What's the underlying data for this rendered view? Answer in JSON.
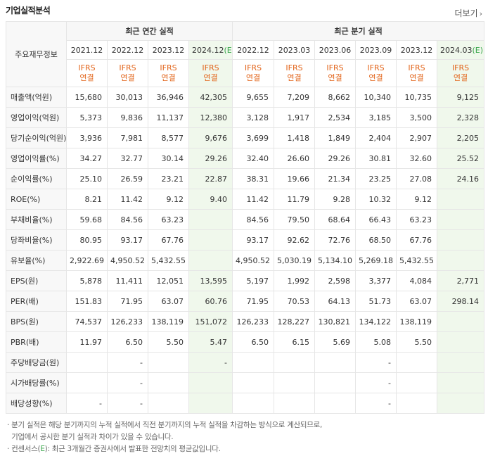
{
  "header": {
    "title": "기업실적분석",
    "more_label": "더보기"
  },
  "table": {
    "corner_label": "주요재무정보",
    "annual_group": "최근 연간 실적",
    "quarter_group": "최근 분기 실적",
    "periods": [
      "2021.12",
      "2022.12",
      "2023.12",
      "2024.12(E)",
      "2022.12",
      "2023.03",
      "2023.06",
      "2023.09",
      "2023.12",
      "2024.03(E)"
    ],
    "ifrs_top": "IFRS",
    "ifrs_bottom": "연결",
    "rows": [
      {
        "label": "매출액(억원)",
        "values": [
          "15,680",
          "30,013",
          "36,946",
          "42,305",
          "9,655",
          "7,209",
          "8,662",
          "10,340",
          "10,735",
          "9,125"
        ]
      },
      {
        "label": "영업이익(억원)",
        "values": [
          "5,373",
          "9,836",
          "11,137",
          "12,380",
          "3,128",
          "1,917",
          "2,534",
          "3,185",
          "3,500",
          "2,328"
        ]
      },
      {
        "label": "당기순이익(억원)",
        "values": [
          "3,936",
          "7,981",
          "8,577",
          "9,676",
          "3,699",
          "1,418",
          "1,849",
          "2,404",
          "2,907",
          "2,205"
        ]
      },
      {
        "label": "영업이익률(%)",
        "values": [
          "34.27",
          "32.77",
          "30.14",
          "29.26",
          "32.40",
          "26.60",
          "29.26",
          "30.81",
          "32.60",
          "25.52"
        ]
      },
      {
        "label": "순이익률(%)",
        "values": [
          "25.10",
          "26.59",
          "23.21",
          "22.87",
          "38.31",
          "19.66",
          "21.34",
          "23.25",
          "27.08",
          "24.16"
        ]
      },
      {
        "label": "ROE(%)",
        "values": [
          "8.21",
          "11.42",
          "9.12",
          "9.40",
          "11.42",
          "11.79",
          "9.28",
          "10.32",
          "9.12",
          ""
        ]
      },
      {
        "label": "부채비율(%)",
        "values": [
          "59.68",
          "84.56",
          "63.23",
          "",
          "84.56",
          "79.50",
          "68.64",
          "66.43",
          "63.23",
          ""
        ]
      },
      {
        "label": "당좌비율(%)",
        "values": [
          "80.95",
          "93.17",
          "67.76",
          "",
          "93.17",
          "92.62",
          "72.76",
          "68.50",
          "67.76",
          ""
        ]
      },
      {
        "label": "유보율(%)",
        "values": [
          "2,922.69",
          "4,950.52",
          "5,432.55",
          "",
          "4,950.52",
          "5,030.19",
          "5,134.10",
          "5,269.18",
          "5,432.55",
          ""
        ]
      },
      {
        "label": "EPS(원)",
        "values": [
          "5,878",
          "11,411",
          "12,051",
          "13,595",
          "5,197",
          "1,992",
          "2,598",
          "3,377",
          "4,084",
          "2,771"
        ]
      },
      {
        "label": "PER(배)",
        "values": [
          "151.83",
          "71.95",
          "63.07",
          "60.76",
          "71.95",
          "70.53",
          "64.13",
          "51.73",
          "63.07",
          "298.14"
        ]
      },
      {
        "label": "BPS(원)",
        "values": [
          "74,537",
          "126,233",
          "138,119",
          "151,072",
          "126,233",
          "128,227",
          "130,821",
          "134,122",
          "138,119",
          ""
        ]
      },
      {
        "label": "PBR(배)",
        "values": [
          "11.97",
          "6.50",
          "5.50",
          "5.47",
          "6.50",
          "6.15",
          "5.69",
          "5.08",
          "5.50",
          ""
        ]
      },
      {
        "label": "주당배당금(원)",
        "values": [
          "",
          "-",
          "",
          "-",
          "",
          "",
          "",
          "-",
          "",
          ""
        ]
      },
      {
        "label": "시가배당률(%)",
        "values": [
          "",
          "-",
          "",
          "",
          "",
          "",
          "",
          "-",
          "",
          ""
        ]
      },
      {
        "label": "배당성향(%)",
        "values": [
          "-",
          "-",
          "",
          "",
          "",
          "",
          "",
          "-",
          "",
          ""
        ]
      }
    ]
  },
  "notes": {
    "line1": "· 분기 실적은 해당 분기까지의 누적 실적에서 직전 분기까지의 누적 실적을 차감하는 방식으로 계산되므로,",
    "line2": "  기업에서 공시한 분기 실적과 차이가 있을 수 있습니다.",
    "line3_prefix": "· 컨센서스(",
    "line3_e": "E",
    "line3_suffix": "): 최근 3개월간 증권사에서 발표한 전망치의 평균값입니다."
  }
}
